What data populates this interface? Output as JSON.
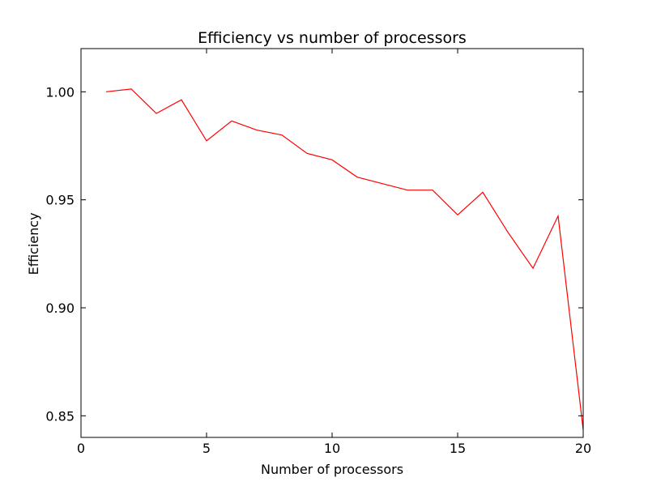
{
  "chart_data": {
    "type": "line",
    "title": "Efficiency vs number of processors",
    "xlabel": "Number of processors",
    "ylabel": "Efficiency",
    "xlim": [
      0,
      20
    ],
    "ylim": [
      0.84,
      1.02
    ],
    "grid": false,
    "legend": "none",
    "x_ticks": [
      0,
      5,
      10,
      15,
      20
    ],
    "x_tick_labels": [
      "0",
      "5",
      "10",
      "15",
      "20"
    ],
    "y_ticks": [
      0.85,
      0.9,
      0.95,
      1.0
    ],
    "y_tick_labels": [
      "0.85",
      "0.90",
      "0.95",
      "1.00"
    ],
    "series": [
      {
        "color": "#ff0000",
        "x": [
          1,
          2,
          3,
          4,
          5,
          6,
          7,
          8,
          9,
          10,
          11,
          12,
          13,
          14,
          15,
          16,
          17,
          18,
          19,
          20
        ],
        "y": [
          1.0,
          1.0013,
          0.99,
          0.9963,
          0.9773,
          0.9865,
          0.9823,
          0.98,
          0.9715,
          0.9685,
          0.9605,
          0.9575,
          0.9545,
          0.9545,
          0.943,
          0.9535,
          0.935,
          0.9183,
          0.9425,
          0.8435
        ]
      }
    ]
  }
}
